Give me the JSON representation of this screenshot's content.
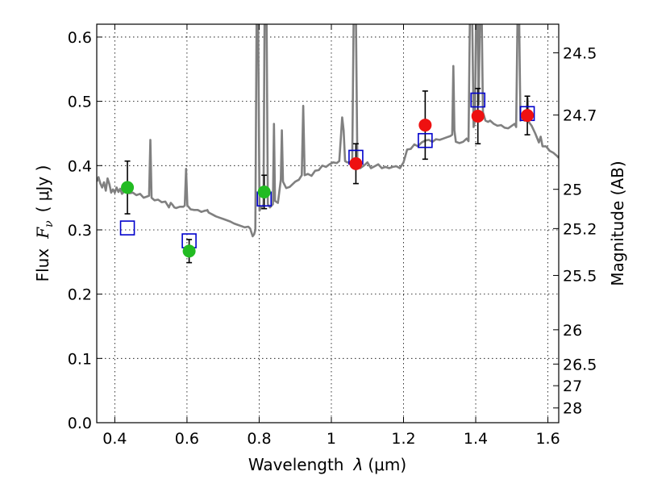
{
  "chart_data": {
    "type": "scatter",
    "xlabel_prefix": "Wavelength",
    "xlabel_symbol": "λ",
    "xlabel_unit": "(μm)",
    "ylabel_prefix": "Flux",
    "ylabel_symbol": "F",
    "ylabel_subscript": "ν",
    "ylabel_unit": "( μJy )",
    "y2label": "Magnitude (AB)",
    "xlim": [
      0.35,
      1.63
    ],
    "ylim": [
      0.0,
      0.62
    ],
    "grid": true,
    "x_ticks": [
      {
        "value": 0.4,
        "label": "0.4"
      },
      {
        "value": 0.6,
        "label": "0.6"
      },
      {
        "value": 0.8,
        "label": "0.8"
      },
      {
        "value": 1.0,
        "label": "1"
      },
      {
        "value": 1.2,
        "label": "1.2"
      },
      {
        "value": 1.4,
        "label": "1.4"
      },
      {
        "value": 1.6,
        "label": "1.6"
      }
    ],
    "y_ticks": [
      {
        "value": 0.0,
        "label": "0.0"
      },
      {
        "value": 0.1,
        "label": "0.1"
      },
      {
        "value": 0.2,
        "label": "0.2"
      },
      {
        "value": 0.3,
        "label": "0.3"
      },
      {
        "value": 0.4,
        "label": "0.4"
      },
      {
        "value": 0.5,
        "label": "0.5"
      },
      {
        "value": 0.6,
        "label": "0.6"
      }
    ],
    "mag_ticks": [
      {
        "value": 24.5,
        "label": "24.5"
      },
      {
        "value": 24.7,
        "label": "24.7"
      },
      {
        "value": 25.0,
        "label": "25"
      },
      {
        "value": 25.2,
        "label": "25.2"
      },
      {
        "value": 25.5,
        "label": "25.5"
      },
      {
        "value": 26.0,
        "label": "26"
      },
      {
        "value": 26.5,
        "label": "26.5"
      },
      {
        "value": 27.0,
        "label": "27"
      },
      {
        "value": 28.0,
        "label": "28"
      }
    ],
    "colors": {
      "model_line": "#808080",
      "optical_points": "#22bb22",
      "nir_points": "#ee1111",
      "model_boxes": "#0000cc",
      "error_bars": "#000000"
    },
    "observed_optical": [
      {
        "x": 0.435,
        "y": 0.366,
        "err": 0.041
      },
      {
        "x": 0.606,
        "y": 0.267,
        "err": 0.018
      },
      {
        "x": 0.814,
        "y": 0.359,
        "err": 0.026
      }
    ],
    "observed_nir": [
      {
        "x": 1.068,
        "y": 0.403,
        "err": 0.031
      },
      {
        "x": 1.26,
        "y": 0.463,
        "err": 0.053
      },
      {
        "x": 1.406,
        "y": 0.477,
        "err": 0.043
      },
      {
        "x": 1.543,
        "y": 0.478,
        "err": 0.03
      }
    ],
    "model_boxes": [
      {
        "x": 0.435,
        "y": 0.303
      },
      {
        "x": 0.606,
        "y": 0.283
      },
      {
        "x": 0.814,
        "y": 0.348
      },
      {
        "x": 1.068,
        "y": 0.413
      },
      {
        "x": 1.26,
        "y": 0.439
      },
      {
        "x": 1.406,
        "y": 0.502
      },
      {
        "x": 1.543,
        "y": 0.481
      }
    ],
    "model_spectrum": [
      [
        0.35,
        0.375
      ],
      [
        0.355,
        0.382
      ],
      [
        0.36,
        0.372
      ],
      [
        0.365,
        0.366
      ],
      [
        0.37,
        0.374
      ],
      [
        0.375,
        0.361
      ],
      [
        0.38,
        0.38
      ],
      [
        0.385,
        0.371
      ],
      [
        0.39,
        0.358
      ],
      [
        0.395,
        0.363
      ],
      [
        0.4,
        0.358
      ],
      [
        0.405,
        0.366
      ],
      [
        0.41,
        0.359
      ],
      [
        0.415,
        0.364
      ],
      [
        0.42,
        0.356
      ],
      [
        0.43,
        0.362
      ],
      [
        0.44,
        0.357
      ],
      [
        0.45,
        0.358
      ],
      [
        0.46,
        0.354
      ],
      [
        0.47,
        0.356
      ],
      [
        0.48,
        0.35
      ],
      [
        0.49,
        0.352
      ],
      [
        0.495,
        0.353
      ],
      [
        0.4985,
        0.44
      ],
      [
        0.502,
        0.35
      ],
      [
        0.51,
        0.346
      ],
      [
        0.52,
        0.347
      ],
      [
        0.53,
        0.343
      ],
      [
        0.54,
        0.344
      ],
      [
        0.55,
        0.335
      ],
      [
        0.555,
        0.342
      ],
      [
        0.56,
        0.339
      ],
      [
        0.565,
        0.335
      ],
      [
        0.57,
        0.334
      ],
      [
        0.58,
        0.336
      ],
      [
        0.59,
        0.336
      ],
      [
        0.594,
        0.338
      ],
      [
        0.5975,
        0.395
      ],
      [
        0.601,
        0.338
      ],
      [
        0.61,
        0.332
      ],
      [
        0.62,
        0.331
      ],
      [
        0.63,
        0.331
      ],
      [
        0.64,
        0.328
      ],
      [
        0.65,
        0.33
      ],
      [
        0.655,
        0.33
      ],
      [
        0.6565,
        0.331
      ],
      [
        0.66,
        0.327
      ],
      [
        0.67,
        0.324
      ],
      [
        0.68,
        0.321
      ],
      [
        0.69,
        0.319
      ],
      [
        0.7,
        0.317
      ],
      [
        0.71,
        0.315
      ],
      [
        0.72,
        0.313
      ],
      [
        0.73,
        0.31
      ],
      [
        0.74,
        0.308
      ],
      [
        0.75,
        0.306
      ],
      [
        0.76,
        0.304
      ],
      [
        0.77,
        0.305
      ],
      [
        0.775,
        0.302
      ],
      [
        0.782,
        0.29
      ],
      [
        0.786,
        0.293
      ],
      [
        0.7895,
        0.3
      ],
      [
        0.793,
        0.64
      ],
      [
        0.797,
        0.64
      ],
      [
        0.801,
        0.33
      ],
      [
        0.805,
        0.335
      ],
      [
        0.808,
        0.334
      ],
      [
        0.812,
        0.34
      ],
      [
        0.815,
        0.64
      ],
      [
        0.8205,
        0.64
      ],
      [
        0.824,
        0.34
      ],
      [
        0.83,
        0.335
      ],
      [
        0.838,
        0.34
      ],
      [
        0.841,
        0.465
      ],
      [
        0.844,
        0.345
      ],
      [
        0.852,
        0.342
      ],
      [
        0.86,
        0.378
      ],
      [
        0.863,
        0.455
      ],
      [
        0.866,
        0.375
      ],
      [
        0.875,
        0.365
      ],
      [
        0.885,
        0.367
      ],
      [
        0.9,
        0.375
      ],
      [
        0.91,
        0.378
      ],
      [
        0.918,
        0.385
      ],
      [
        0.922,
        0.493
      ],
      [
        0.926,
        0.385
      ],
      [
        0.935,
        0.387
      ],
      [
        0.945,
        0.384
      ],
      [
        0.955,
        0.392
      ],
      [
        0.965,
        0.393
      ],
      [
        0.975,
        0.4
      ],
      [
        0.985,
        0.398
      ],
      [
        0.995,
        0.402
      ],
      [
        1.005,
        0.405
      ],
      [
        1.015,
        0.404
      ],
      [
        1.022,
        0.407
      ],
      [
        1.026,
        0.44
      ],
      [
        1.03,
        0.475
      ],
      [
        1.034,
        0.455
      ],
      [
        1.038,
        0.407
      ],
      [
        1.044,
        0.405
      ],
      [
        1.052,
        0.405
      ],
      [
        1.058,
        0.408
      ],
      [
        1.062,
        0.64
      ],
      [
        1.068,
        0.64
      ],
      [
        1.072,
        0.41
      ],
      [
        1.08,
        0.396
      ],
      [
        1.09,
        0.4
      ],
      [
        1.1,
        0.405
      ],
      [
        1.11,
        0.396
      ],
      [
        1.12,
        0.399
      ],
      [
        1.13,
        0.402
      ],
      [
        1.14,
        0.396
      ],
      [
        1.15,
        0.398
      ],
      [
        1.16,
        0.396
      ],
      [
        1.17,
        0.398
      ],
      [
        1.18,
        0.399
      ],
      [
        1.19,
        0.396
      ],
      [
        1.2,
        0.405
      ],
      [
        1.21,
        0.425
      ],
      [
        1.22,
        0.426
      ],
      [
        1.23,
        0.433
      ],
      [
        1.24,
        0.43
      ],
      [
        1.25,
        0.436
      ],
      [
        1.26,
        0.439
      ],
      [
        1.27,
        0.44
      ],
      [
        1.28,
        0.437
      ],
      [
        1.29,
        0.441
      ],
      [
        1.3,
        0.44
      ],
      [
        1.31,
        0.442
      ],
      [
        1.32,
        0.444
      ],
      [
        1.33,
        0.446
      ],
      [
        1.335,
        0.448
      ],
      [
        1.338,
        0.555
      ],
      [
        1.341,
        0.455
      ],
      [
        1.345,
        0.437
      ],
      [
        1.355,
        0.435
      ],
      [
        1.365,
        0.437
      ],
      [
        1.375,
        0.442
      ],
      [
        1.38,
        0.438
      ],
      [
        1.384,
        0.64
      ],
      [
        1.39,
        0.64
      ],
      [
        1.394,
        0.46
      ],
      [
        1.398,
        0.47
      ],
      [
        1.401,
        0.64
      ],
      [
        1.405,
        0.64
      ],
      [
        1.408,
        0.495
      ],
      [
        1.412,
        0.64
      ],
      [
        1.4165,
        0.64
      ],
      [
        1.42,
        0.483
      ],
      [
        1.427,
        0.47
      ],
      [
        1.434,
        0.468
      ],
      [
        1.44,
        0.47
      ],
      [
        1.45,
        0.465
      ],
      [
        1.46,
        0.462
      ],
      [
        1.47,
        0.463
      ],
      [
        1.48,
        0.459
      ],
      [
        1.49,
        0.458
      ],
      [
        1.5,
        0.462
      ],
      [
        1.508,
        0.465
      ],
      [
        1.512,
        0.46
      ],
      [
        1.516,
        0.64
      ],
      [
        1.52,
        0.64
      ],
      [
        1.524,
        0.47
      ],
      [
        1.53,
        0.48
      ],
      [
        1.535,
        0.47
      ],
      [
        1.54,
        0.472
      ],
      [
        1.5435,
        0.505
      ],
      [
        1.547,
        0.468
      ],
      [
        1.555,
        0.462
      ],
      [
        1.565,
        0.45
      ],
      [
        1.575,
        0.436
      ],
      [
        1.58,
        0.445
      ],
      [
        1.585,
        0.43
      ],
      [
        1.595,
        0.43
      ],
      [
        1.605,
        0.423
      ],
      [
        1.615,
        0.42
      ],
      [
        1.625,
        0.415
      ],
      [
        1.63,
        0.412
      ]
    ]
  }
}
